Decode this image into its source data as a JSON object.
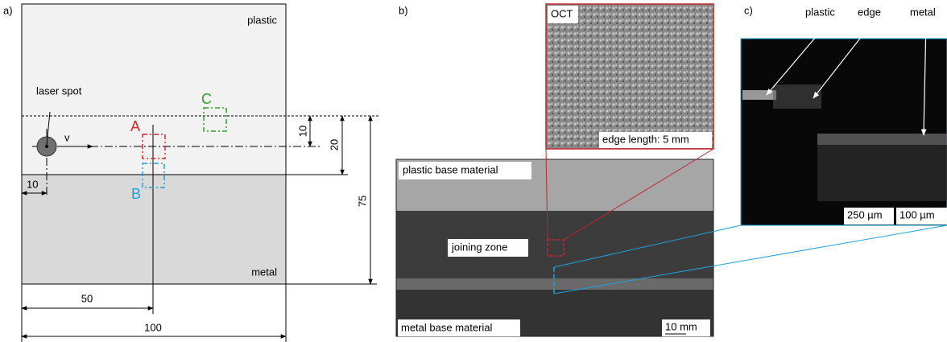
{
  "panel_a": {
    "label": "a)",
    "plastic": "plastic",
    "metal": "metal",
    "laser_spot": "laser spot",
    "velocity": "v",
    "marker_a": "A",
    "marker_b": "B",
    "marker_c": "C",
    "dim_10_vertical": "10",
    "dim_20": "20",
    "dim_75": "75",
    "dim_10_horizontal": "10",
    "dim_50": "50",
    "dim_100": "100"
  },
  "panel_b": {
    "label": "b)",
    "oct": "OCT",
    "edge_length": "edge length: 5 mm",
    "plastic_base": "plastic base material",
    "joining_zone": "joining zone",
    "metal_base": "metal base material",
    "scale": "10 mm"
  },
  "panel_c": {
    "label": "c)",
    "plastic": "plastic",
    "edge": "edge",
    "metal": "metal",
    "scale_1": "250 µm",
    "scale_2": "100 µm"
  }
}
